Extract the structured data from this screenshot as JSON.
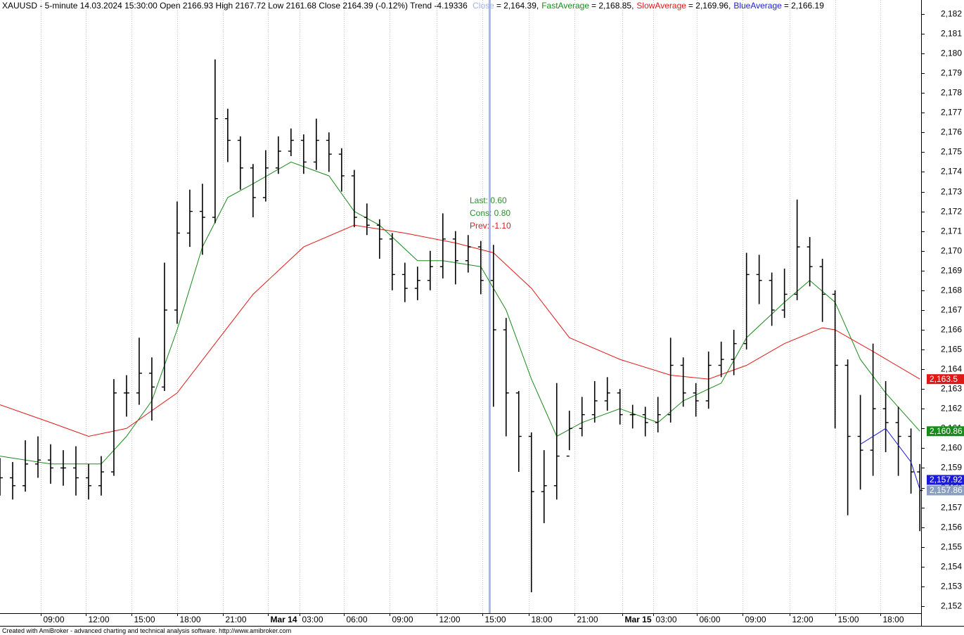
{
  "chart_data": {
    "type": "ohlc",
    "title": "XAUUSD - 5-minute 14.03.2024 15:30:00 Open 2166.93 High 2167.72 Low 2161.68 Close 2164.39 (-0.12%) Trend -4.19336",
    "footer": "Created with AmiBroker - advanced charting and technical analysis software. http://www.amibroker.com",
    "xlim": [
      0,
      728
    ],
    "xticks": [
      {
        "value": 32,
        "label": "09:00"
      },
      {
        "value": 68,
        "label": "12:00"
      },
      {
        "value": 104,
        "label": "15:00"
      },
      {
        "value": 140,
        "label": "18:00"
      },
      {
        "value": 176,
        "label": "21:00"
      },
      {
        "value": 212,
        "label": "Mar 14"
      },
      {
        "value": 237,
        "label": "03:00"
      },
      {
        "value": 272,
        "label": "06:00"
      },
      {
        "value": 308,
        "label": "09:00"
      },
      {
        "value": 345,
        "label": "12:00"
      },
      {
        "value": 381,
        "label": "15:00"
      },
      {
        "value": 418,
        "label": "18:00"
      },
      {
        "value": 454,
        "label": "21:00"
      },
      {
        "value": 492,
        "label": "Mar 15"
      },
      {
        "value": 516,
        "label": "03:00"
      },
      {
        "value": 551,
        "label": "06:00"
      },
      {
        "value": 587,
        "label": "09:00"
      },
      {
        "value": 624,
        "label": "12:00"
      },
      {
        "value": 660,
        "label": "15:00"
      },
      {
        "value": 696,
        "label": "18:00"
      }
    ],
    "ylim": [
      2151.64,
      2182.71
    ],
    "yticks": [
      {
        "value": 2152,
        "label": "2,152"
      },
      {
        "value": 2153,
        "label": "2,153"
      },
      {
        "value": 2154,
        "label": "2,154"
      },
      {
        "value": 2155,
        "label": "2,155"
      },
      {
        "value": 2156,
        "label": "2,156"
      },
      {
        "value": 2157,
        "label": "2,157"
      },
      {
        "value": 2158,
        "label": "2,158"
      },
      {
        "value": 2159,
        "label": "2,159"
      },
      {
        "value": 2160,
        "label": "2,160"
      },
      {
        "value": 2161,
        "label": "2,161"
      },
      {
        "value": 2162,
        "label": "2,162"
      },
      {
        "value": 2163,
        "label": "2,163"
      },
      {
        "value": 2164,
        "label": "2,164"
      },
      {
        "value": 2165,
        "label": "2,165"
      },
      {
        "value": 2166,
        "label": "2,166"
      },
      {
        "value": 2167,
        "label": "2,167"
      },
      {
        "value": 2168,
        "label": "2,168"
      },
      {
        "value": 2169,
        "label": "2,169"
      },
      {
        "value": 2170,
        "label": "2,170"
      },
      {
        "value": 2171,
        "label": "2,171"
      },
      {
        "value": 2172,
        "label": "2,172"
      },
      {
        "value": 2173,
        "label": "2,173"
      },
      {
        "value": 2174,
        "label": "2,174"
      },
      {
        "value": 2175,
        "label": "2,175"
      },
      {
        "value": 2176,
        "label": "2,176"
      },
      {
        "value": 2177,
        "label": "2,177"
      },
      {
        "value": 2178,
        "label": "2,178"
      },
      {
        "value": 2179,
        "label": "2,179"
      },
      {
        "value": 2180,
        "label": "2,180"
      },
      {
        "value": 2181,
        "label": "2,181"
      },
      {
        "value": 2182,
        "label": "2,182"
      }
    ],
    "grid": true,
    "cursor_x": 387,
    "cursor_color": "#a9b4f2",
    "ohlc": {
      "name": "Close",
      "color": "#000000",
      "legend_color": "#9fb4e0",
      "label_color": "#8b9fc4",
      "cursor_text": "= 2,164.39,",
      "last_label": "2,157.86",
      "x": [
        0,
        10,
        20,
        30,
        40,
        50,
        60,
        70,
        80,
        90,
        100,
        110,
        120,
        130,
        140,
        150,
        160,
        170,
        180,
        190,
        200,
        210,
        220,
        230,
        240,
        250,
        260,
        270,
        280,
        290,
        300,
        310,
        320,
        330,
        340,
        350,
        360,
        370,
        380,
        390,
        400,
        410,
        420,
        430,
        440,
        450,
        460,
        470,
        480,
        490,
        500,
        510,
        520,
        530,
        540,
        550,
        560,
        570,
        580,
        590,
        600,
        610,
        620,
        630,
        640,
        650,
        660,
        670,
        680,
        690,
        700,
        710,
        720,
        727
      ],
      "open": [
        2158.9,
        2158.5,
        2158.1,
        2159.2,
        2159.4,
        2159.0,
        2159.0,
        2158.5,
        2158.1,
        2158.8,
        2162.8,
        2162.8,
        2163.8,
        2163.1,
        2167.0,
        2170.9,
        2172.0,
        2171.7,
        2176.7,
        2175.6,
        2174.2,
        2172.7,
        2174.2,
        2175.05,
        2175.6,
        2174.5,
        2175.6,
        2174.9,
        2173.8,
        2171.7,
        2171.3,
        2170.6,
        2168.8,
        2168.1,
        2168.5,
        2169.2,
        2170.6,
        2169.5,
        2170.2,
        2168.5,
        2166.0,
        2162.8,
        2160.6,
        2157.8,
        2158.1,
        2159.6,
        2161.0,
        2161.7,
        2162.4,
        2162.8,
        2161.7,
        2161.7,
        2161.3,
        2161.7,
        2164.2,
        2162.8,
        2162.4,
        2164.2,
        2164.5,
        2165.3,
        2168.8,
        2168.5,
        2167.0,
        2167.8,
        2170.2,
        2169.2,
        2167.8,
        2164.2,
        2160.6,
        2159.9,
        2162.0,
        2161.3,
        2160.6,
        2158.8
      ],
      "high": [
        2159.5,
        2159.3,
        2160.4,
        2160.6,
        2160.2,
        2159.9,
        2160.1,
        2159.2,
        2159.6,
        2163.5,
        2163.7,
        2165.6,
        2164.6,
        2169.4,
        2172.5,
        2173.1,
        2173.4,
        2179.7,
        2177.2,
        2175.8,
        2174.4,
        2175.1,
        2175.8,
        2176.2,
        2175.9,
        2176.7,
        2176.0,
        2175.2,
        2174.1,
        2172.4,
        2171.6,
        2170.9,
        2169.4,
        2169.2,
        2170.0,
        2171.9,
        2171.0,
        2170.8,
        2170.5,
        2170.3,
        2166.6,
        2162.9,
        2160.8,
        2159.9,
        2163.3,
        2161.9,
        2162.6,
        2163.4,
        2163.6,
        2163.0,
        2162.2,
        2162.1,
        2162.6,
        2165.6,
        2164.6,
        2163.3,
        2164.9,
        2165.4,
        2166.0,
        2169.9,
        2169.8,
        2168.9,
        2169.1,
        2172.6,
        2170.7,
        2169.6,
        2168.0,
        2164.5,
        2162.7,
        2165.3,
        2163.4,
        2162.1,
        2161.0,
        2159.2
      ],
      "low": [
        2157.6,
        2157.4,
        2157.8,
        2158.5,
        2158.2,
        2158.1,
        2157.6,
        2157.4,
        2157.6,
        2158.6,
        2161.6,
        2162.2,
        2161.4,
        2162.9,
        2166.3,
        2170.2,
        2169.8,
        2171.4,
        2174.5,
        2173.1,
        2171.7,
        2172.5,
        2173.9,
        2174.8,
        2173.9,
        2174.1,
        2174.0,
        2173.0,
        2171.2,
        2170.8,
        2169.6,
        2168.0,
        2167.4,
        2167.5,
        2168.0,
        2168.6,
        2168.3,
        2168.9,
        2167.8,
        2162.1,
        2160.6,
        2158.8,
        2152.7,
        2156.2,
        2157.4,
        2159.9,
        2160.6,
        2161.3,
        2161.9,
        2161.2,
        2161.0,
        2160.6,
        2160.8,
        2161.3,
        2162.1,
        2161.6,
        2162.0,
        2163.6,
        2163.7,
        2165.0,
        2167.3,
        2166.2,
        2166.6,
        2167.5,
        2168.2,
        2166.4,
        2161.0,
        2156.6,
        2157.9,
        2158.6,
        2159.8,
        2158.6,
        2157.7,
        2155.8
      ],
      "close": [
        2158.5,
        2158.1,
        2159.2,
        2159.4,
        2159.0,
        2159.0,
        2158.5,
        2158.1,
        2158.8,
        2162.8,
        2162.8,
        2163.8,
        2163.1,
        2167.0,
        2170.9,
        2172.0,
        2171.7,
        2176.7,
        2175.6,
        2174.2,
        2172.7,
        2174.2,
        2175.05,
        2175.6,
        2174.5,
        2175.6,
        2174.9,
        2173.8,
        2171.7,
        2171.3,
        2170.6,
        2168.8,
        2168.1,
        2168.5,
        2169.2,
        2170.6,
        2169.5,
        2170.2,
        2168.5,
        2166.0,
        2162.8,
        2160.6,
        2157.8,
        2158.1,
        2159.6,
        2161.0,
        2161.7,
        2162.4,
        2162.8,
        2161.7,
        2161.7,
        2161.3,
        2161.7,
        2164.2,
        2162.8,
        2162.4,
        2164.2,
        2164.5,
        2165.3,
        2168.8,
        2168.5,
        2167.0,
        2167.8,
        2170.2,
        2169.2,
        2167.8,
        2164.2,
        2160.6,
        2159.9,
        2162.0,
        2161.3,
        2160.6,
        2158.8,
        2157.86
      ]
    },
    "series": [
      {
        "name": "FastAverage",
        "color": "#1a8a1a",
        "cursor_text": "= 2,168.85,",
        "last_label": "2,160.86",
        "x": [
          0,
          40,
          80,
          100,
          120,
          140,
          160,
          180,
          200,
          230,
          260,
          280,
          300,
          330,
          350,
          380,
          400,
          420,
          440,
          460,
          490,
          520,
          540,
          570,
          590,
          620,
          640,
          660,
          680,
          700,
          727
        ],
        "values": [
          2159.6,
          2159.2,
          2159.2,
          2160.6,
          2162.4,
          2166.0,
          2170.2,
          2172.7,
          2173.4,
          2174.5,
          2173.8,
          2172.0,
          2171.3,
          2169.5,
          2169.5,
          2169.2,
          2167.0,
          2163.5,
          2160.6,
          2161.3,
          2162.0,
          2161.3,
          2162.4,
          2163.3,
          2165.6,
          2167.4,
          2168.5,
          2167.4,
          2164.5,
          2162.8,
          2160.86
        ]
      },
      {
        "name": "SlowAverage",
        "color": "#e01818",
        "cursor_text": "= 2,169.96,",
        "last_label": "2,163.5",
        "x": [
          0,
          40,
          70,
          100,
          140,
          170,
          200,
          240,
          280,
          320,
          360,
          390,
          420,
          450,
          490,
          530,
          560,
          590,
          620,
          650,
          660,
          690,
          727
        ],
        "values": [
          2162.2,
          2161.3,
          2160.6,
          2161.0,
          2162.8,
          2165.3,
          2167.8,
          2170.2,
          2171.3,
          2170.9,
          2170.4,
          2169.9,
          2168.1,
          2165.6,
          2164.5,
          2163.7,
          2163.5,
          2164.2,
          2165.3,
          2166.1,
          2166.0,
          2164.9,
          2163.5
        ]
      },
      {
        "name": "BlueAverage",
        "color": "#1c1cd6",
        "cursor_text": "= 2,166.19",
        "last_label": "2,157.92",
        "x": [
          680,
          700,
          720,
          727
        ],
        "values": [
          2160.2,
          2161.0,
          2159.3,
          2157.92
        ]
      }
    ],
    "annotations": [
      {
        "text": "Last: 0.60",
        "color": "#2e8b2e"
      },
      {
        "text": "Cons: 0.80",
        "color": "#2e8b2e"
      },
      {
        "text": "Prev: -1.10",
        "color": "#d42020"
      }
    ]
  }
}
